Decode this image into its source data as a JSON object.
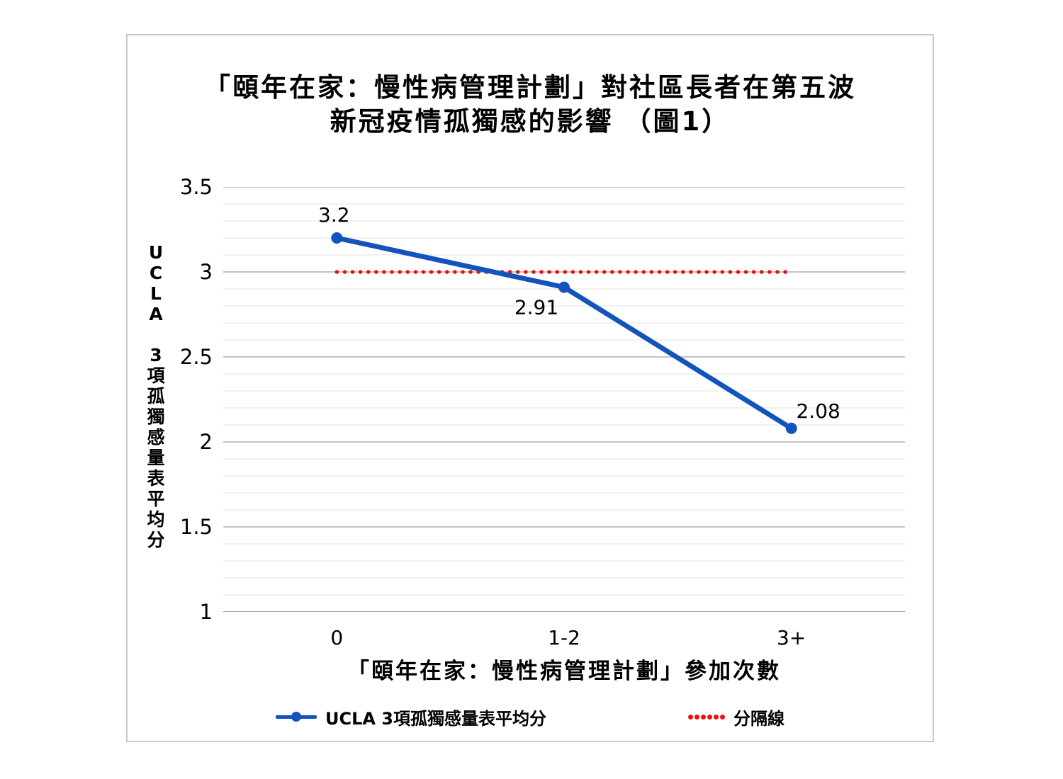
{
  "chart": {
    "title_line1": "「頤年在家：慢性病管理計劃」對社區長者在第五波",
    "title_line2": "新冠疫情孤獨感的影響 （圖1）",
    "y_axis_title": "UCLA 3項孤獨感量表平均分",
    "x_axis_title": "「頤年在家：慢性病管理計劃」參加次數",
    "colors": {
      "series_blue": "#1353BC",
      "divider_red": "#ED1111",
      "grid_minor": "#ECECEC",
      "grid_major": "#C4C4C4",
      "axis_line": "#A9A9A9",
      "text": "#000000",
      "card_border": "#C9C9C9"
    }
  },
  "chart_data": {
    "type": "line",
    "title": "「頤年在家：慢性病管理計劃」對社區長者在第五波 新冠疫情孤獨感的影響 （圖1）",
    "categories": [
      "0",
      "1-2",
      "3+"
    ],
    "series": [
      {
        "name": "UCLA 3項孤獨感量表平均分",
        "values": [
          3.2,
          2.91,
          2.08
        ],
        "labels": [
          "3.2",
          "2.91",
          "2.08"
        ],
        "color": "#1353BC",
        "style": "solid",
        "marker": "circle"
      },
      {
        "name": "分隔線",
        "values": [
          3,
          3,
          3
        ],
        "color": "#ED1111",
        "style": "dotted"
      }
    ],
    "xlabel": "「頤年在家：慢性病管理計劃」參加次數",
    "ylabel": "UCLA 3項孤獨感量表平均分",
    "ylim": [
      1,
      3.5
    ],
    "y_ticks": [
      "3.5",
      "3",
      "2.5",
      "2",
      "1.5",
      "1"
    ],
    "minor_step": 0.1,
    "major_step": 0.5,
    "grid": "on",
    "legend_position": "bottom"
  },
  "legend": [
    {
      "label": "UCLA 3項孤獨感量表平均分",
      "color": "#1353BC",
      "style": "line-marker"
    },
    {
      "label": "分隔線",
      "color": "#ED1111",
      "style": "dotted"
    }
  ]
}
